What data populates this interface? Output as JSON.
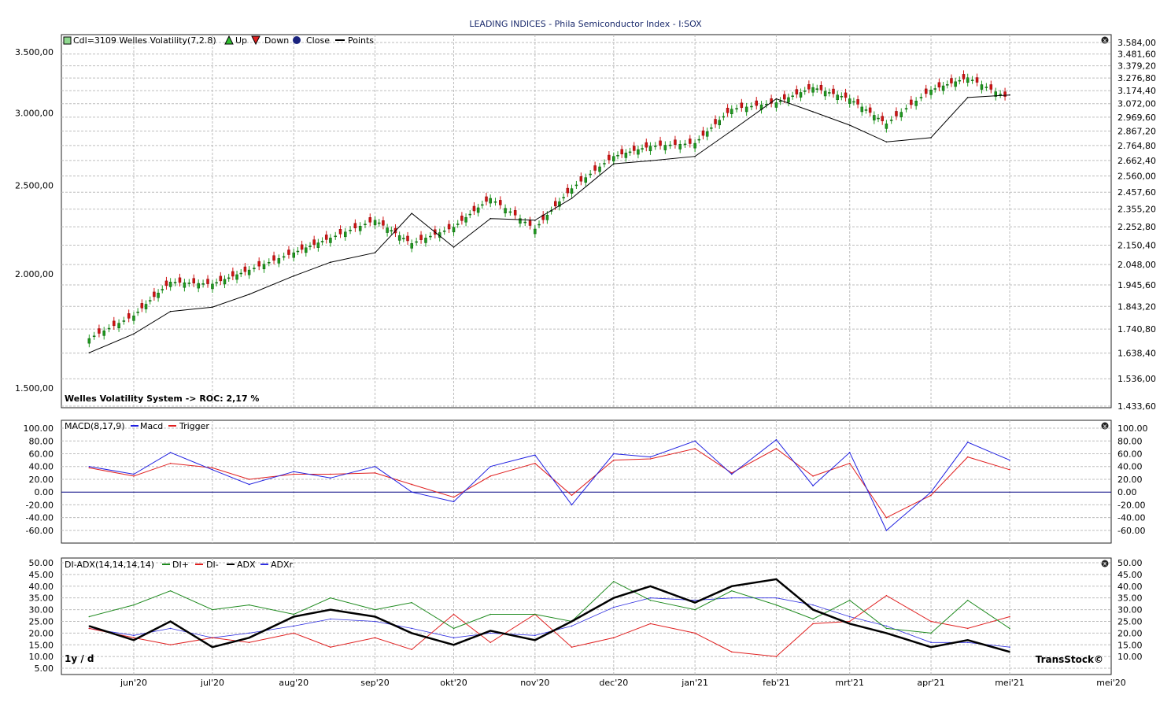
{
  "title": "LEADING INDICES - Phila Semiconductor Index - I:SOX",
  "footer": {
    "period": "1y / d",
    "brand": "TransStock©"
  },
  "x_ticks": [
    "jun'20",
    "jul'20",
    "aug'20",
    "sep'20",
    "okt'20",
    "nov'20",
    "dec'20",
    "jan'21",
    "feb'21",
    "mrt'21",
    "apr'21",
    "mei'21",
    "mei'20"
  ],
  "colors": {
    "up": "#1f9a1f",
    "down": "#d01414",
    "line": "#000000",
    "macd": "#2020e0",
    "trigger": "#e02020",
    "diplus": "#1f8a1f",
    "diminus": "#e02020",
    "adx": "#000000",
    "adxr": "#3030e0",
    "grid": "#bdbdbd"
  },
  "price_panel": {
    "legend": {
      "cdl": "Cdl=3109",
      "indicator": "Welles Volatility(7,2.8)",
      "up": "Up",
      "down": "Down",
      "close": "Close",
      "points": "Points"
    },
    "note": "Welles Volatility System -> ROC: 2,17 %",
    "left_ticks": [
      "3.500,00",
      "3.000,00",
      "2.500,00",
      "2.000,00",
      "1.500,00"
    ],
    "right_ticks": [
      "3.584,00",
      "3.481,60",
      "3.379,20",
      "3.276,80",
      "3.174,40",
      "3.072,00",
      "2.969,60",
      "2.867,20",
      "2.764,80",
      "2.662,40",
      "2.560,00",
      "2.457,60",
      "2.355,20",
      "2.252,80",
      "2.150,40",
      "2.048,00",
      "1.945,60",
      "1.843,20",
      "1.740,80",
      "1.638,40",
      "1.536,00",
      "1.433,60"
    ]
  },
  "macd_panel": {
    "legend": {
      "name": "MACD(8,17,9)",
      "macd": "Macd",
      "trigger": "Trigger"
    },
    "left_ticks": [
      "100.00",
      "80.00",
      "60.00",
      "40.00",
      "20.00",
      "0.00",
      "-20.00",
      "-40.00",
      "-60.00"
    ],
    "right_ticks": [
      "100.00",
      "80.00",
      "60.00",
      "40.00",
      "20.00",
      "0.00",
      "-20.00",
      "-40.00",
      "-60.00"
    ]
  },
  "adx_panel": {
    "legend": {
      "name": "DI-ADX(14,14,14,14)",
      "diplus": "DI+",
      "diminus": "DI-",
      "adx": "ADX",
      "adxr": "ADXr"
    },
    "left_ticks": [
      "50.00",
      "45.00",
      "40.00",
      "35.00",
      "30.00",
      "25.00",
      "20.00",
      "15.00",
      "10.00",
      "5.00"
    ],
    "right_ticks": [
      "50.00",
      "45.00",
      "40.00",
      "35.00",
      "30.00",
      "25.00",
      "20.00",
      "15.00",
      "10.00"
    ]
  },
  "chart_data": [
    {
      "type": "line",
      "title": "LEADING INDICES - Phila Semiconductor Index - I:SOX",
      "x": [
        "2020-05-15",
        "2020-06-01",
        "2020-06-15",
        "2020-07-01",
        "2020-07-15",
        "2020-08-01",
        "2020-08-15",
        "2020-09-01",
        "2020-09-15",
        "2020-10-01",
        "2020-10-15",
        "2020-11-01",
        "2020-11-15",
        "2020-12-01",
        "2020-12-15",
        "2021-01-01",
        "2021-01-15",
        "2021-02-01",
        "2021-02-15",
        "2021-03-01",
        "2021-03-15",
        "2021-04-01",
        "2021-04-15",
        "2021-05-01"
      ],
      "series": [
        {
          "name": "Close",
          "values": [
            1700,
            1800,
            1960,
            1950,
            2020,
            2110,
            2190,
            2290,
            2160,
            2250,
            2420,
            2240,
            2480,
            2690,
            2760,
            2780,
            3030,
            3080,
            3200,
            3110,
            2920,
            3180,
            3280,
            3109
          ]
        },
        {
          "name": "Points",
          "values": [
            1640,
            1720,
            1820,
            1840,
            1900,
            1990,
            2060,
            2110,
            2330,
            2140,
            2300,
            2290,
            2420,
            2640,
            2660,
            2690,
            2870,
            3110,
            3010,
            2910,
            2790,
            2820,
            3120,
            3140
          ]
        }
      ],
      "ylim": [
        1433.6,
        3584
      ],
      "scale": "log"
    },
    {
      "type": "line",
      "title": "MACD(8,17,9)",
      "x": [
        "2020-05-15",
        "2020-06-01",
        "2020-06-15",
        "2020-07-01",
        "2020-07-15",
        "2020-08-01",
        "2020-08-15",
        "2020-09-01",
        "2020-09-15",
        "2020-10-01",
        "2020-10-15",
        "2020-11-01",
        "2020-11-15",
        "2020-12-01",
        "2020-12-15",
        "2021-01-01",
        "2021-01-15",
        "2021-02-01",
        "2021-02-15",
        "2021-03-01",
        "2021-03-15",
        "2021-04-01",
        "2021-04-15",
        "2021-05-01"
      ],
      "series": [
        {
          "name": "Macd",
          "values": [
            40,
            28,
            62,
            35,
            12,
            32,
            22,
            40,
            0,
            -15,
            40,
            58,
            -20,
            60,
            55,
            80,
            28,
            82,
            10,
            62,
            -60,
            0,
            78,
            50
          ]
        },
        {
          "name": "Trigger",
          "values": [
            38,
            25,
            45,
            38,
            20,
            28,
            28,
            30,
            12,
            -8,
            25,
            45,
            -5,
            50,
            52,
            68,
            30,
            68,
            25,
            45,
            -40,
            -5,
            55,
            35
          ]
        }
      ],
      "ylim": [
        -70,
        105
      ]
    },
    {
      "type": "line",
      "title": "DI-ADX(14,14,14,14)",
      "x": [
        "2020-05-15",
        "2020-06-01",
        "2020-06-15",
        "2020-07-01",
        "2020-07-15",
        "2020-08-01",
        "2020-08-15",
        "2020-09-01",
        "2020-09-15",
        "2020-10-01",
        "2020-10-15",
        "2020-11-01",
        "2020-11-15",
        "2020-12-01",
        "2020-12-15",
        "2021-01-01",
        "2021-01-15",
        "2021-02-01",
        "2021-02-15",
        "2021-03-01",
        "2021-03-15",
        "2021-04-01",
        "2021-04-15",
        "2021-05-01"
      ],
      "series": [
        {
          "name": "DI+",
          "values": [
            27,
            32,
            38,
            30,
            32,
            28,
            35,
            30,
            33,
            22,
            28,
            28,
            25,
            42,
            34,
            30,
            38,
            32,
            26,
            34,
            22,
            20,
            34,
            22
          ]
        },
        {
          "name": "DI-",
          "values": [
            22,
            18,
            15,
            18,
            16,
            20,
            14,
            18,
            13,
            28,
            16,
            28,
            14,
            18,
            24,
            20,
            12,
            10,
            24,
            25,
            36,
            25,
            22,
            27
          ]
        },
        {
          "name": "ADX",
          "values": [
            23,
            17,
            25,
            14,
            18,
            27,
            30,
            27,
            20,
            15,
            21,
            17,
            25,
            35,
            40,
            33,
            40,
            43,
            30,
            24,
            20,
            14,
            17,
            12
          ]
        },
        {
          "name": "ADXr",
          "values": [
            22,
            19,
            22,
            18,
            20,
            23,
            26,
            25,
            22,
            18,
            20,
            19,
            23,
            31,
            35,
            34,
            35,
            35,
            32,
            27,
            23,
            16,
            16,
            14
          ]
        }
      ],
      "ylim": [
        3,
        50
      ]
    }
  ]
}
